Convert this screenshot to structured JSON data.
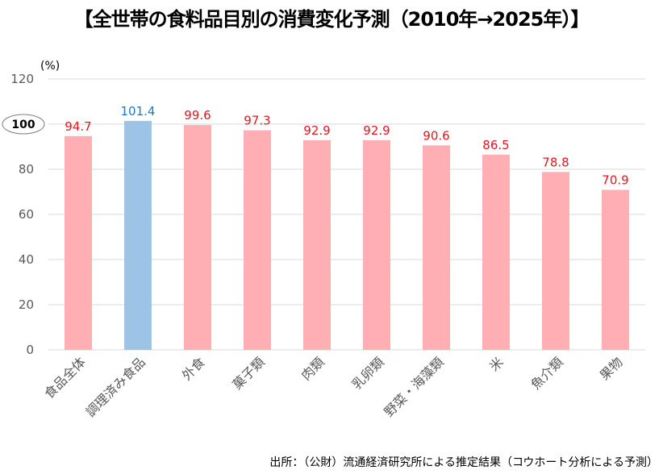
{
  "title": "【全世帯の食料品目別の消費変化予測（2010年→2025年）】",
  "source": "出所：（公財）流通経済研究所による推定結果（コウホート分析による予測）",
  "colors": {
    "bar_default": "#ffaeb3",
    "bar_highlight": "#9dc3e6",
    "label_default": "#e8141e",
    "label_highlight": "#1f78c4",
    "grid": "#d9d9d9"
  },
  "chart_data": {
    "type": "bar",
    "title": "【全世帯の食料品目別の消費変化予測（2010年→2025年）】",
    "xlabel": "",
    "ylabel": "(%)",
    "ylim": [
      0,
      120
    ],
    "yticks": [
      0,
      20,
      40,
      60,
      80,
      100,
      120
    ],
    "grid": true,
    "reference_line": {
      "value": 100,
      "label": "100"
    },
    "categories": [
      "食品全体",
      "調理済み食品",
      "外食",
      "菓子類",
      "肉類",
      "乳卵類",
      "野菜・海藻類",
      "米",
      "魚介類",
      "果物"
    ],
    "values": [
      94.7,
      101.4,
      99.6,
      97.3,
      92.9,
      92.9,
      90.6,
      86.5,
      78.8,
      70.9
    ],
    "data_labels": [
      "94.7",
      "101.4",
      "99.6",
      "97.3",
      "92.9",
      "92.9",
      "90.6",
      "86.5",
      "78.8",
      "70.9"
    ],
    "highlight_index": 1
  }
}
